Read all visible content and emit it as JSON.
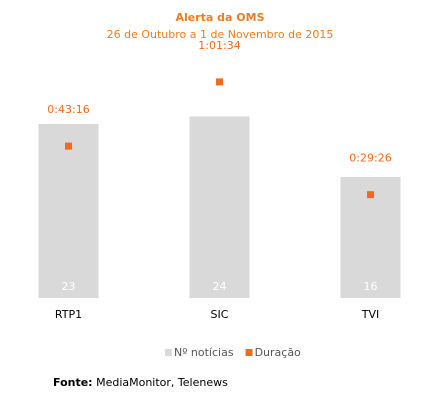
{
  "chart_data": {
    "type": "bar-dot",
    "title": "Alerta da OMS",
    "subtitle": "26 de Outubro a 1 de Novembro de 2015",
    "categories": [
      "RTP1",
      "SIC",
      "TVI"
    ],
    "series": [
      {
        "name": "Nº notícias",
        "color": "#d9d9d9",
        "values": [
          23,
          24,
          16
        ]
      },
      {
        "name": "Duração",
        "color": "#f26a1b",
        "axis": "y2",
        "values": [
          2596,
          3694,
          1766
        ],
        "value_labels": [
          "0:43:16",
          "1:01:34",
          "0:29:26"
        ]
      }
    ],
    "ylim": [
      0,
      30
    ],
    "y2lim": [
      0,
      3880
    ],
    "source": {
      "label": "Fonte:",
      "text": "MediaMonitor, Telenews"
    }
  }
}
